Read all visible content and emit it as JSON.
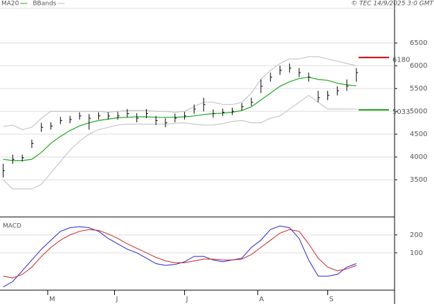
{
  "chart_data": [
    {
      "type": "ohlc",
      "source": "© TEC 14/9/2025 3:0 GMT",
      "x": [
        0,
        3,
        6,
        9,
        12,
        15,
        18,
        21,
        24,
        27,
        30,
        33,
        36,
        39,
        42,
        45,
        48,
        51,
        54,
        57,
        60,
        63,
        66,
        69,
        72,
        75,
        78,
        81,
        84,
        87,
        90,
        93,
        96,
        99,
        102,
        105,
        108,
        111
      ],
      "high": [
        3850,
        4050,
        4050,
        4380,
        4750,
        4760,
        4880,
        4900,
        4980,
        4940,
        4980,
        4980,
        4990,
        5050,
        4960,
        5050,
        4900,
        4850,
        4950,
        4990,
        5150,
        5300,
        5040,
        5060,
        5080,
        5180,
        5300,
        5700,
        5850,
        6000,
        6050,
        5950,
        5850,
        5450,
        5450,
        5550,
        5700,
        5950
      ],
      "low": [
        3550,
        3850,
        3900,
        4200,
        4550,
        4600,
        4720,
        4740,
        4820,
        4600,
        4820,
        4820,
        4820,
        4870,
        4760,
        4850,
        4700,
        4650,
        4760,
        4820,
        4950,
        5000,
        4860,
        4900,
        4920,
        5020,
        5120,
        5400,
        5650,
        5800,
        5850,
        5750,
        5650,
        5200,
        5250,
        5350,
        5450,
        5650
      ],
      "close": [
        3700,
        3950,
        3980,
        4300,
        4650,
        4680,
        4800,
        4820,
        4900,
        4850,
        4900,
        4900,
        4900,
        4950,
        4850,
        4950,
        4800,
        4750,
        4850,
        4900,
        5050,
        5150,
        4950,
        4980,
        5000,
        5100,
        5200,
        5550,
        5750,
        5900,
        5950,
        5850,
        5750,
        5300,
        5350,
        5450,
        5550,
        5850
      ],
      "color": "#000000",
      "overlays": [
        {
          "name": "MA20",
          "color": "#1fa51f",
          "values": [
            3950,
            3920,
            3920,
            3950,
            4100,
            4300,
            4450,
            4580,
            4680,
            4750,
            4800,
            4830,
            4860,
            4870,
            4880,
            4880,
            4870,
            4870,
            4870,
            4880,
            4900,
            4930,
            4950,
            4960,
            4980,
            5020,
            5100,
            5250,
            5400,
            5550,
            5650,
            5720,
            5750,
            5700,
            5680,
            5620,
            5580,
            5560
          ]
        },
        {
          "name": "BBands",
          "color": "#bbbbbb",
          "upper": [
            4670,
            4700,
            4600,
            4650,
            4850,
            5000,
            5000,
            5000,
            5000,
            5000,
            5000,
            4980,
            5000,
            5020,
            5020,
            5020,
            5000,
            5000,
            4980,
            5000,
            5100,
            5200,
            5200,
            5150,
            5150,
            5200,
            5400,
            5700,
            5900,
            6050,
            6150,
            6150,
            6200,
            6200,
            6150,
            6100,
            6050,
            6000
          ],
          "lower": [
            3500,
            3300,
            3300,
            3300,
            3400,
            3650,
            3900,
            4150,
            4350,
            4500,
            4600,
            4650,
            4700,
            4720,
            4720,
            4720,
            4720,
            4720,
            4740,
            4750,
            4720,
            4700,
            4700,
            4730,
            4780,
            4800,
            4750,
            4750,
            4850,
            4900,
            5050,
            5200,
            5350,
            5200,
            5050,
            5050,
            5050,
            5050
          ]
        }
      ],
      "annotations": [
        {
          "value": 6180,
          "color": "#cc0000"
        },
        {
          "value": 5033,
          "color": "#1fa51f"
        }
      ],
      "xlim": [
        -1,
        123
      ],
      "ylim": [
        2700,
        7260
      ],
      "yticks": [
        3500,
        4000,
        4500,
        5000,
        5500,
        6000,
        6500
      ],
      "grid": true
    },
    {
      "type": "line",
      "title": "MACD",
      "x": [
        0,
        3,
        6,
        9,
        12,
        15,
        18,
        21,
        24,
        27,
        30,
        33,
        36,
        39,
        42,
        45,
        48,
        51,
        54,
        57,
        60,
        63,
        66,
        69,
        72,
        75,
        78,
        81,
        84,
        87,
        90,
        93,
        96,
        99,
        102,
        105,
        108,
        111
      ],
      "series": [
        {
          "color": "#2222cc",
          "values": [
            -90,
            -60,
            0,
            60,
            120,
            170,
            220,
            240,
            246,
            240,
            220,
            180,
            150,
            120,
            100,
            70,
            40,
            30,
            35,
            50,
            80,
            80,
            60,
            50,
            60,
            70,
            130,
            170,
            230,
            250,
            240,
            180,
            60,
            -30,
            -30,
            -20,
            20,
            40
          ]
        },
        {
          "color": "#cc2222",
          "values": [
            -30,
            -40,
            -20,
            20,
            80,
            130,
            170,
            200,
            220,
            230,
            225,
            205,
            180,
            150,
            125,
            100,
            75,
            55,
            45,
            45,
            55,
            65,
            65,
            60,
            60,
            65,
            90,
            130,
            170,
            210,
            230,
            220,
            150,
            70,
            20,
            0,
            10,
            30
          ]
        }
      ],
      "xlim": [
        -1,
        123
      ],
      "ylim": [
        -108,
        296
      ],
      "yticks": [
        100,
        200
      ],
      "xticks": [
        {
          "value": 14,
          "label": "M"
        },
        {
          "value": 35,
          "label": "J"
        },
        {
          "value": 57,
          "label": "J"
        },
        {
          "value": 80,
          "label": "A"
        },
        {
          "value": 102,
          "label": "S"
        }
      ],
      "grid": true
    }
  ]
}
